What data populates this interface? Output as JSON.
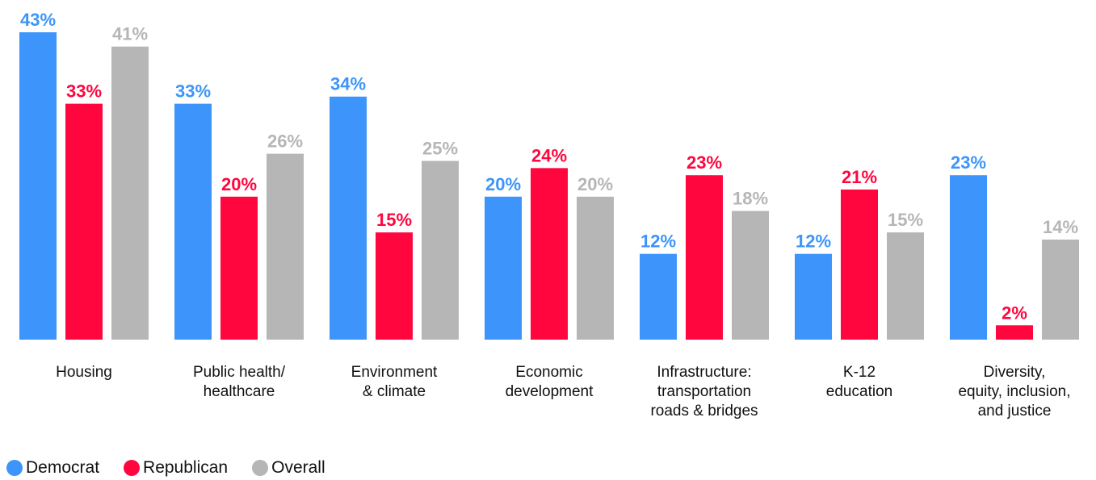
{
  "chart_data": {
    "type": "bar",
    "categories": [
      [
        "Housing"
      ],
      [
        "Public health/",
        "healthcare"
      ],
      [
        "Environment",
        "& climate"
      ],
      [
        "Economic",
        "development"
      ],
      [
        "Infrastructure:",
        "transportation",
        "roads & bridges"
      ],
      [
        "K-12",
        "education"
      ],
      [
        "Diversity,",
        "equity, inclusion,",
        "and justice"
      ]
    ],
    "series": [
      {
        "name": "Democrat",
        "color": "#3d95fb",
        "values": [
          43,
          33,
          34,
          20,
          12,
          12,
          23
        ]
      },
      {
        "name": "Republican",
        "color": "#ff063e",
        "values": [
          33,
          20,
          15,
          24,
          23,
          21,
          2
        ]
      },
      {
        "name": "Overall",
        "color": "#b6b6b6",
        "values": [
          41,
          26,
          25,
          20,
          18,
          15,
          14
        ]
      }
    ],
    "value_suffix": "%",
    "ylim": [
      0,
      43
    ],
    "grid": false,
    "legend_position": "bottom-left",
    "title": "",
    "xlabel": "",
    "ylabel": ""
  },
  "legend": {
    "democrat": "Democrat",
    "republican": "Republican",
    "overall": "Overall"
  }
}
